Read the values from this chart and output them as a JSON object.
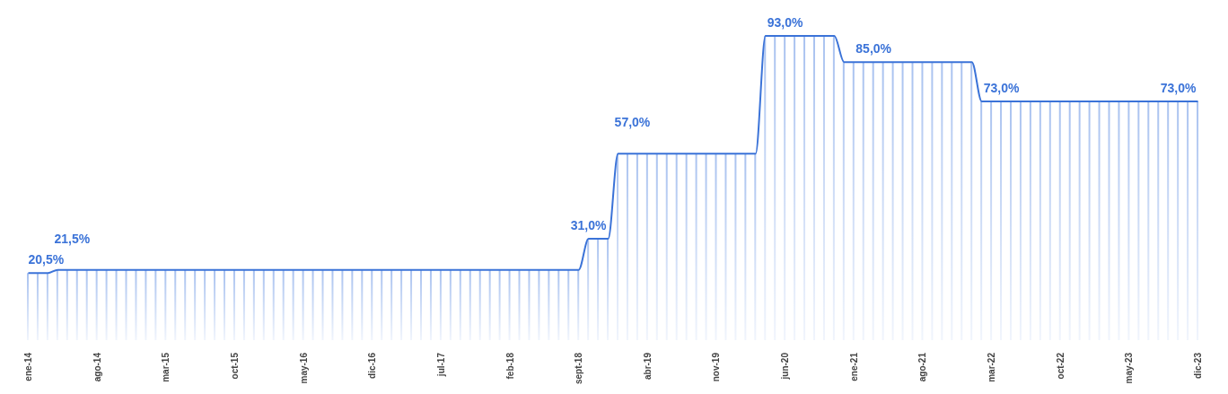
{
  "chart_data": {
    "type": "bar",
    "tick_labels": "x",
    "categories": [
      "ene-14",
      null,
      null,
      null,
      null,
      null,
      null,
      "ago-14",
      null,
      null,
      null,
      null,
      null,
      null,
      "mar-15",
      null,
      null,
      null,
      null,
      null,
      null,
      "oct-15",
      null,
      null,
      null,
      null,
      null,
      null,
      "may-16",
      null,
      null,
      null,
      null,
      null,
      null,
      "dic-16",
      null,
      null,
      null,
      null,
      null,
      null,
      "jul-17",
      null,
      null,
      null,
      null,
      null,
      null,
      "feb-18",
      null,
      null,
      null,
      null,
      null,
      null,
      "sept-18",
      null,
      null,
      null,
      null,
      null,
      null,
      "abr-19",
      null,
      null,
      null,
      null,
      null,
      null,
      "nov-19",
      null,
      null,
      null,
      null,
      null,
      null,
      "jun-20",
      null,
      null,
      null,
      null,
      null,
      null,
      "ene-21",
      null,
      null,
      null,
      null,
      null,
      null,
      "ago-21",
      null,
      null,
      null,
      null,
      null,
      null,
      "mar-22",
      null,
      null,
      null,
      null,
      null,
      null,
      "oct-22",
      null,
      null,
      null,
      null,
      null,
      null,
      "may-23",
      null,
      null,
      null,
      null,
      null,
      null,
      "dic-23"
    ],
    "series": [
      {
        "color": "#9fbbee",
        "values": [
          20.5,
          20.5,
          20.5,
          21.5,
          21.5,
          21.5,
          21.5,
          21.5,
          21.5,
          21.5,
          21.5,
          21.5,
          21.5,
          21.5,
          21.5,
          21.5,
          21.5,
          21.5,
          21.5,
          21.5,
          21.5,
          21.5,
          21.5,
          21.5,
          21.5,
          21.5,
          21.5,
          21.5,
          21.5,
          21.5,
          21.5,
          21.5,
          21.5,
          21.5,
          21.5,
          21.5,
          21.5,
          21.5,
          21.5,
          21.5,
          21.5,
          21.5,
          21.5,
          21.5,
          21.5,
          21.5,
          21.5,
          21.5,
          21.5,
          21.5,
          21.5,
          21.5,
          21.5,
          21.5,
          21.5,
          21.5,
          21.5,
          31,
          31,
          31,
          57,
          57,
          57,
          57,
          57,
          57,
          57,
          57,
          57,
          57,
          57,
          57,
          57,
          57,
          57,
          93,
          93,
          93,
          93,
          93,
          93,
          93,
          93,
          85,
          85,
          85,
          85,
          85,
          85,
          85,
          85,
          85,
          85,
          85,
          85,
          85,
          85,
          73,
          73,
          73,
          73,
          73,
          73,
          73,
          73,
          73,
          73,
          73,
          73,
          73,
          73,
          73,
          73,
          73,
          73,
          73,
          73,
          73,
          73,
          73
        ]
      },
      {
        "type": "line",
        "color": "#3b73d8",
        "values": [
          20.5,
          20.5,
          20.5,
          21.5,
          21.5,
          21.5,
          21.5,
          21.5,
          21.5,
          21.5,
          21.5,
          21.5,
          21.5,
          21.5,
          21.5,
          21.5,
          21.5,
          21.5,
          21.5,
          21.5,
          21.5,
          21.5,
          21.5,
          21.5,
          21.5,
          21.5,
          21.5,
          21.5,
          21.5,
          21.5,
          21.5,
          21.5,
          21.5,
          21.5,
          21.5,
          21.5,
          21.5,
          21.5,
          21.5,
          21.5,
          21.5,
          21.5,
          21.5,
          21.5,
          21.5,
          21.5,
          21.5,
          21.5,
          21.5,
          21.5,
          21.5,
          21.5,
          21.5,
          21.5,
          21.5,
          21.5,
          21.5,
          31,
          31,
          31,
          57,
          57,
          57,
          57,
          57,
          57,
          57,
          57,
          57,
          57,
          57,
          57,
          57,
          57,
          57,
          93,
          93,
          93,
          93,
          93,
          93,
          93,
          93,
          85,
          85,
          85,
          85,
          85,
          85,
          85,
          85,
          85,
          85,
          85,
          85,
          85,
          85,
          73,
          73,
          73,
          73,
          73,
          73,
          73,
          73,
          73,
          73,
          73,
          73,
          73,
          73,
          73,
          73,
          73,
          73,
          73,
          73,
          73,
          73,
          73
        ],
        "value_labels": [
          "20,5%",
          null,
          null,
          "21,5%",
          null,
          null,
          null,
          null,
          null,
          null,
          null,
          null,
          null,
          null,
          null,
          null,
          null,
          null,
          null,
          null,
          null,
          null,
          null,
          null,
          null,
          null,
          null,
          null,
          null,
          null,
          null,
          null,
          null,
          null,
          null,
          null,
          null,
          null,
          null,
          null,
          null,
          null,
          null,
          null,
          null,
          null,
          null,
          null,
          null,
          null,
          null,
          null,
          null,
          null,
          null,
          null,
          null,
          "31,0%",
          null,
          null,
          "57,0%",
          null,
          null,
          null,
          null,
          null,
          null,
          null,
          null,
          null,
          null,
          null,
          null,
          null,
          null,
          null,
          null,
          "93,0%",
          null,
          null,
          null,
          null,
          null,
          null,
          null,
          null,
          "85,0%",
          null,
          null,
          null,
          null,
          null,
          null,
          null,
          null,
          null,
          null,
          null,
          null,
          "73,0%",
          null,
          null,
          null,
          null,
          null,
          null,
          null,
          null,
          null,
          null,
          null,
          null,
          null,
          null,
          null,
          null,
          null,
          "73,0%",
          null,
          null
        ]
      }
    ]
  }
}
